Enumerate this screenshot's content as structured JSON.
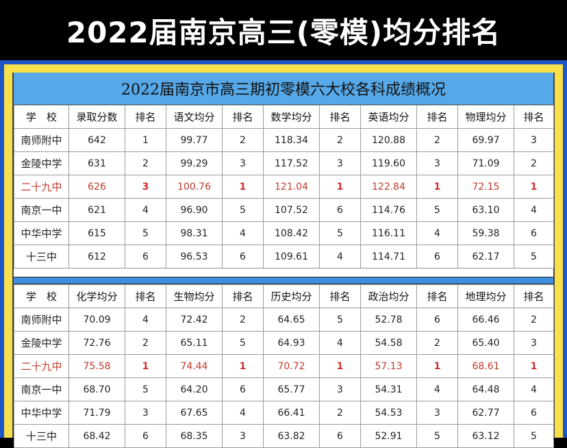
{
  "banner_title": "2022届南京高三(零模)均分排名",
  "subtitle": "2022届南京市高三期初零模六大校各科成绩概况",
  "table1": {
    "headers": [
      "学　校",
      "录取分数",
      "排名",
      "语文均分",
      "排名",
      "数学均分",
      "排名",
      "英语均分",
      "排名",
      "物理均分",
      "排名"
    ],
    "rows": [
      [
        "南师附中",
        "642",
        "1",
        "99.77",
        "2",
        "118.34",
        "2",
        "120.88",
        "2",
        "69.97",
        "3"
      ],
      [
        "金陵中学",
        "631",
        "2",
        "99.29",
        "3",
        "117.52",
        "3",
        "119.60",
        "3",
        "71.09",
        "2"
      ],
      [
        "二十九中",
        "626",
        "3",
        "100.76",
        "1",
        "121.04",
        "1",
        "122.84",
        "1",
        "72.15",
        "1"
      ],
      [
        "南京一中",
        "621",
        "4",
        "96.90",
        "5",
        "107.52",
        "6",
        "114.76",
        "5",
        "63.10",
        "4"
      ],
      [
        "中华中学",
        "615",
        "5",
        "98.31",
        "4",
        "108.42",
        "5",
        "116.11",
        "4",
        "59.38",
        "6"
      ],
      [
        "十三中",
        "612",
        "6",
        "96.53",
        "6",
        "109.61",
        "4",
        "114.71",
        "6",
        "62.17",
        "5"
      ]
    ]
  },
  "table2": {
    "headers": [
      "学　校",
      "化学均分",
      "排名",
      "生物均分",
      "排名",
      "历史均分",
      "排名",
      "政治均分",
      "排名",
      "地理均分",
      "排名"
    ],
    "rows": [
      [
        "南师附中",
        "70.09",
        "4",
        "72.42",
        "2",
        "64.65",
        "5",
        "52.78",
        "6",
        "66.46",
        "2"
      ],
      [
        "金陵中学",
        "72.76",
        "2",
        "65.11",
        "5",
        "64.93",
        "4",
        "54.58",
        "2",
        "65.40",
        "3"
      ],
      [
        "二十九中",
        "75.58",
        "1",
        "74.44",
        "1",
        "70.72",
        "1",
        "57.13",
        "1",
        "68.61",
        "1"
      ],
      [
        "南京一中",
        "68.70",
        "5",
        "64.20",
        "6",
        "65.77",
        "3",
        "54.31",
        "4",
        "64.48",
        "4"
      ],
      [
        "中华中学",
        "71.79",
        "3",
        "67.65",
        "4",
        "66.41",
        "2",
        "54.53",
        "3",
        "62.77",
        "6"
      ],
      [
        "十三中",
        "68.42",
        "6",
        "68.35",
        "3",
        "63.82",
        "6",
        "52.91",
        "5",
        "63.12",
        "5"
      ]
    ]
  },
  "highlight_school": "二十九中",
  "colors": {
    "banner_bg": "#000000",
    "frame_yellow": "#f7e04a",
    "frame_blue": "#1e56c7",
    "subtitle_bar": "#56a8e8",
    "highlight_text": "#c0392b"
  }
}
